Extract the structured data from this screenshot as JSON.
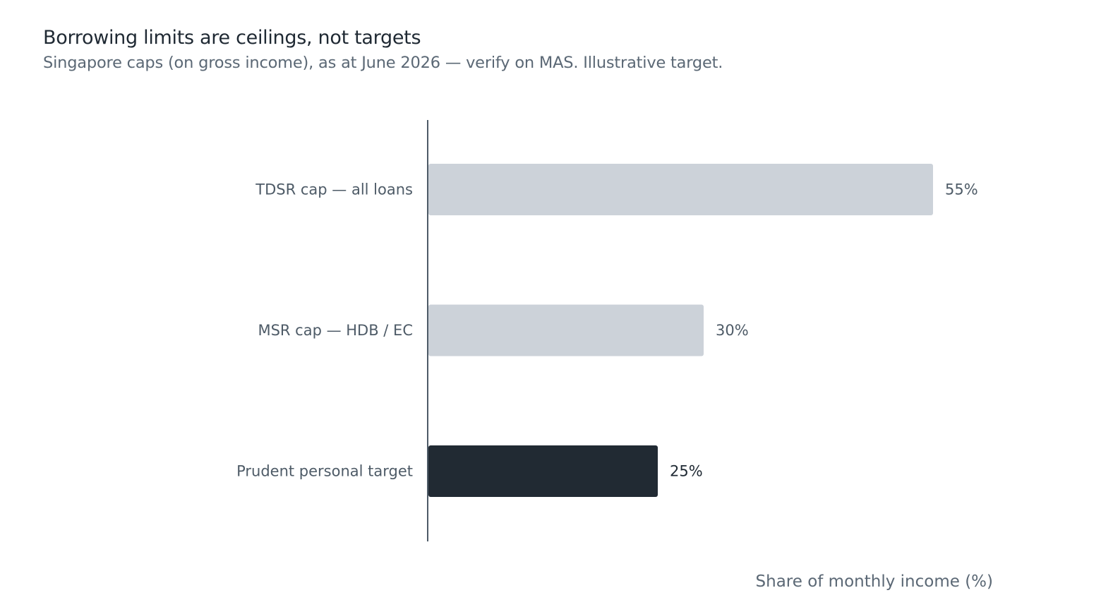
{
  "header": {
    "title": "Borrowing limits are ceilings, not targets",
    "subtitle": "Singapore caps (on gross income), as at June 2026 — verify on MAS. Illustrative target."
  },
  "chart_data": {
    "type": "bar",
    "orientation": "horizontal",
    "categories": [
      "TDSR cap — all loans",
      "MSR cap — HDB / EC",
      "Prudent personal target"
    ],
    "values": [
      55,
      30,
      25
    ],
    "value_labels": [
      "55%",
      "30%",
      "25%"
    ],
    "xlabel": "Share of monthly income (%)",
    "ylabel": "",
    "xlim": [
      0,
      60
    ],
    "grid": false,
    "colors": {
      "cap_bar": "#ccd2d9",
      "target_bar": "#212a33",
      "cap_value_text": "#4e5b67",
      "target_value_text": "#1f2933",
      "axis_line": "#4e5b67"
    },
    "highlighted_category": "Prudent personal target"
  }
}
